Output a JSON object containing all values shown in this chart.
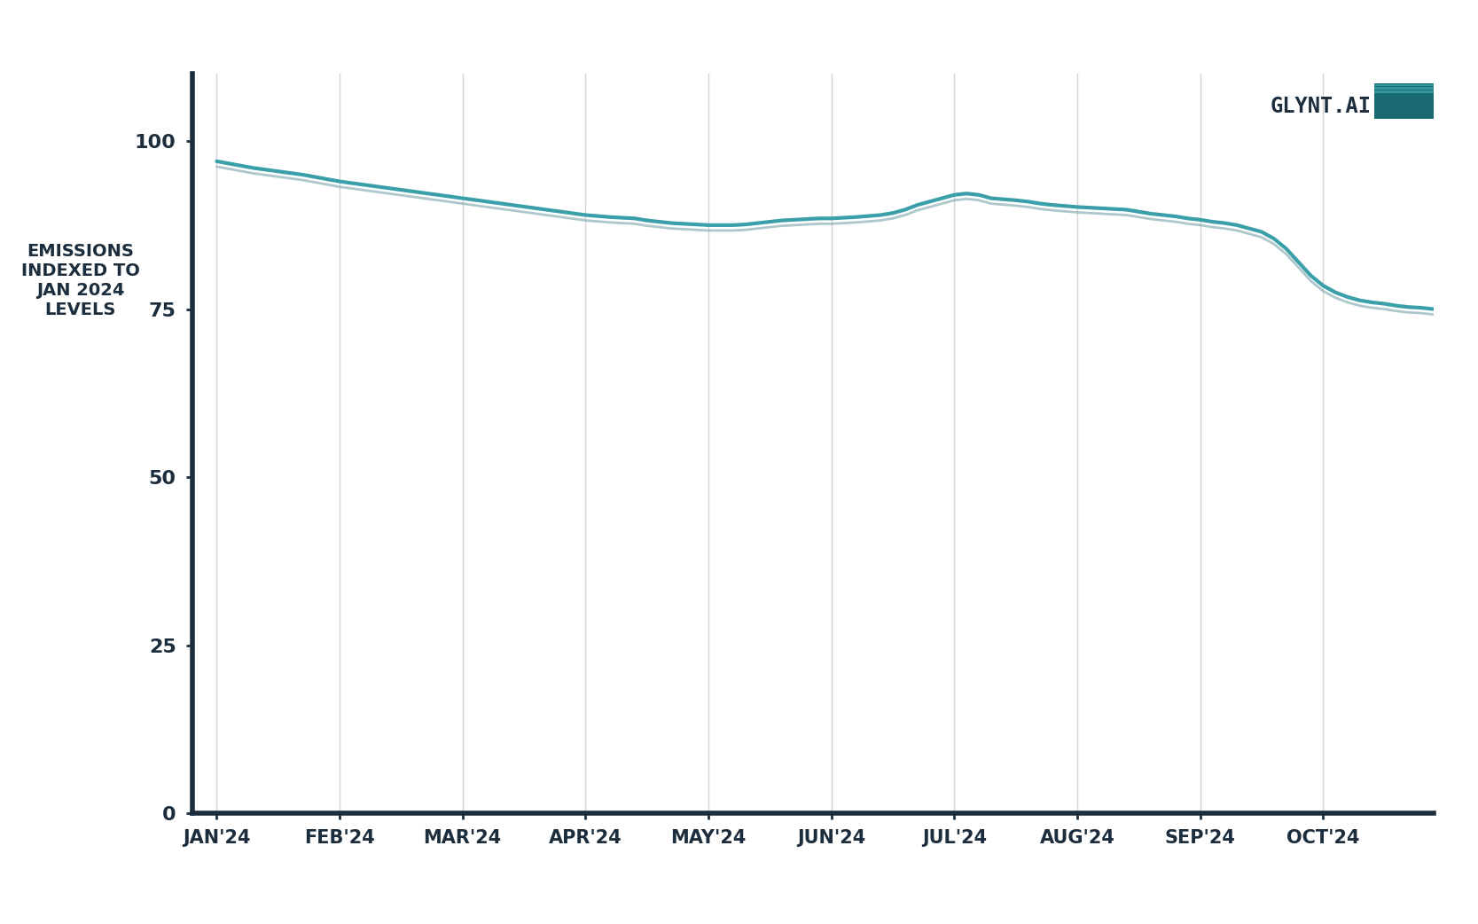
{
  "months": [
    "JAN'24",
    "FEB'24",
    "MAR'24",
    "APR'24",
    "MAY'24",
    "JUN'24",
    "JUL'24",
    "AUG'24",
    "SEP'24",
    "OCT'24"
  ],
  "line_data_x": [
    0,
    0.15,
    0.3,
    0.5,
    0.7,
    0.85,
    1.0,
    1.2,
    1.4,
    1.6,
    1.8,
    2.0,
    2.2,
    2.4,
    2.6,
    2.8,
    3.0,
    3.2,
    3.4,
    3.5,
    3.6,
    3.7,
    3.8,
    4.0,
    4.2,
    4.3,
    4.5,
    4.6,
    4.7,
    4.9,
    5.0,
    5.1,
    5.2,
    5.4,
    5.5,
    5.6,
    5.7,
    5.8,
    5.9,
    6.0,
    6.1,
    6.2,
    6.3,
    6.5,
    6.6,
    6.7,
    6.8,
    7.0,
    7.2,
    7.4,
    7.5,
    7.6,
    7.7,
    7.8,
    7.9,
    8.0,
    8.1,
    8.2,
    8.3,
    8.4,
    8.5,
    8.6,
    8.7,
    8.8,
    8.9,
    9.0,
    9.1,
    9.2,
    9.3,
    9.4,
    9.5,
    9.6,
    9.7,
    9.8,
    9.9
  ],
  "line_data_y": [
    97,
    96.5,
    96,
    95.5,
    95,
    94.5,
    94,
    93.5,
    93,
    92.5,
    92,
    91.5,
    91,
    90.5,
    90,
    89.5,
    89,
    88.7,
    88.5,
    88.2,
    88.0,
    87.8,
    87.7,
    87.5,
    87.5,
    87.6,
    88.0,
    88.2,
    88.3,
    88.5,
    88.5,
    88.6,
    88.7,
    89.0,
    89.3,
    89.8,
    90.5,
    91.0,
    91.5,
    92.0,
    92.2,
    92.0,
    91.5,
    91.2,
    91.0,
    90.7,
    90.5,
    90.2,
    90.0,
    89.8,
    89.5,
    89.2,
    89.0,
    88.8,
    88.5,
    88.3,
    88.0,
    87.8,
    87.5,
    87.0,
    86.5,
    85.5,
    84.0,
    82.0,
    80.0,
    78.5,
    77.5,
    76.8,
    76.3,
    76.0,
    75.8,
    75.5,
    75.3,
    75.2,
    75.0
  ],
  "ylabel_lines": [
    "EMISSIONS",
    "INDEXED TO",
    "JAN 2024",
    "LEVELS"
  ],
  "yticks": [
    0,
    25,
    50,
    75,
    100
  ],
  "ylim": [
    0,
    110
  ],
  "xlim": [
    -0.2,
    9.9
  ],
  "line_color": "#3a9fa8",
  "line_color2": "#8ab0b4",
  "bg_color": "#ffffff",
  "axis_color": "#1c2e3d",
  "tick_color": "#1c2e3d",
  "grid_color": "#d0d0d0",
  "ylabel_color": "#1c2e3d",
  "tick_label_color": "#1c2e3d",
  "logo_text": "GLYNT.AI",
  "logo_color": "#1c2e3d",
  "logo_teal": "#3a9fa8",
  "logo_teal_dark": "#1a6a72"
}
